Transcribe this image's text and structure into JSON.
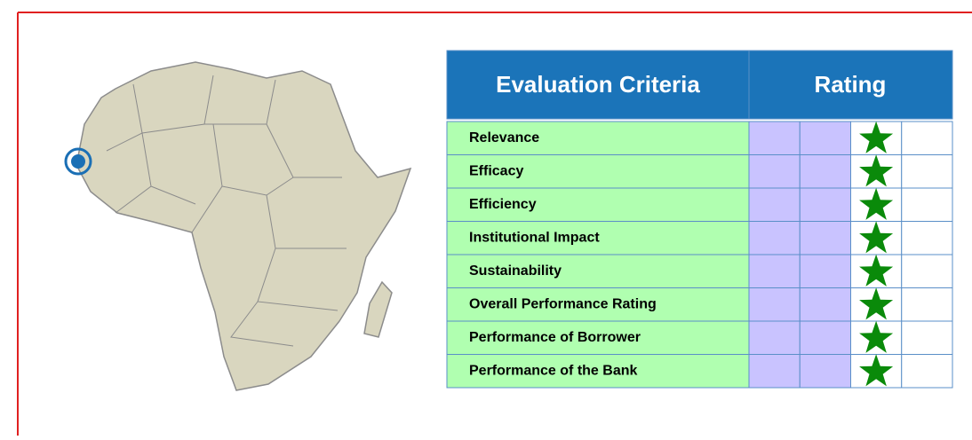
{
  "table": {
    "header": [
      "Evaluation Criteria",
      "Rating"
    ],
    "scale_size": 4,
    "rows": [
      {
        "criterion": "Relevance",
        "rating": 3
      },
      {
        "criterion": "Efficacy",
        "rating": 3
      },
      {
        "criterion": "Efficiency",
        "rating": 3
      },
      {
        "criterion": "Institutional Impact",
        "rating": 3
      },
      {
        "criterion": "Sustainability",
        "rating": 3
      },
      {
        "criterion": "Overall Performance Rating",
        "rating": 3
      },
      {
        "criterion": "Performance of Borrower",
        "rating": 3
      },
      {
        "criterion": "Performance of the Bank",
        "rating": 3
      }
    ]
  }
}
